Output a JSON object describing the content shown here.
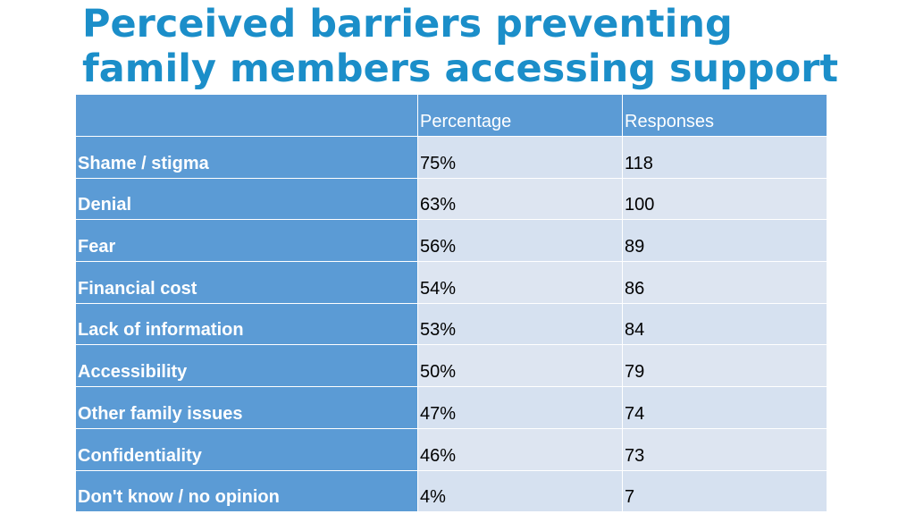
{
  "title": {
    "line1": "Perceived barriers preventing",
    "line2": "family members accessing support"
  },
  "table": {
    "headers": [
      "",
      "Percentage",
      "Responses"
    ],
    "rows": [
      {
        "label": "Shame / stigma",
        "percentage": "75%",
        "responses": "118"
      },
      {
        "label": "Denial",
        "percentage": "63%",
        "responses": "100"
      },
      {
        "label": "Fear",
        "percentage": "56%",
        "responses": "89"
      },
      {
        "label": "Financial cost",
        "percentage": "54%",
        "responses": "86"
      },
      {
        "label": "Lack of information",
        "percentage": "53%",
        "responses": "84"
      },
      {
        "label": "Accessibility",
        "percentage": "50%",
        "responses": "79"
      },
      {
        "label": "Other family issues",
        "percentage": "47%",
        "responses": "74"
      },
      {
        "label": "Confidentiality",
        "percentage": "46%",
        "responses": "73"
      },
      {
        "label": "Don't know / no opinion",
        "percentage": "4%",
        "responses": "7"
      }
    ]
  },
  "colors": {
    "title": "#1b8ec9",
    "header_fill": "#5b9bd5",
    "cell_fill": "#dde5f1"
  }
}
